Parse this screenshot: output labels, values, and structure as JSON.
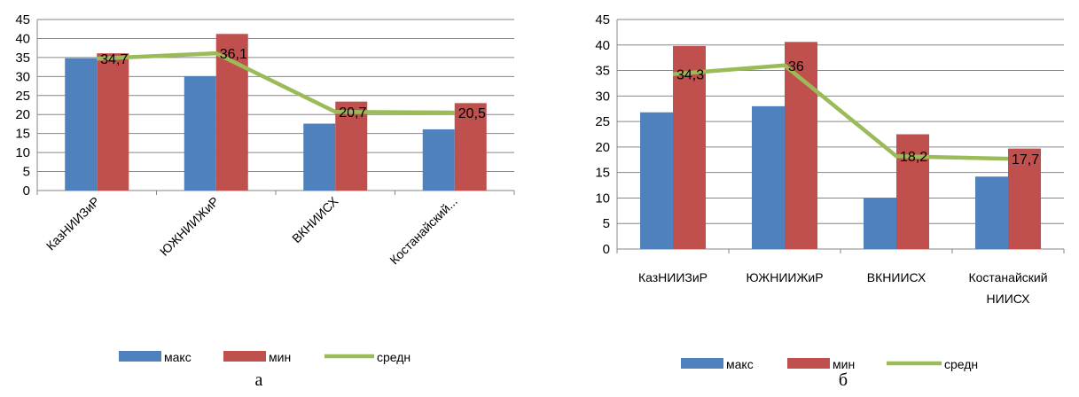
{
  "chart_data": [
    {
      "type": "bar",
      "caption": "а",
      "categories": [
        "КазНИИЗиР",
        "ЮЖНИИЖиР",
        "ВКНИИСХ",
        "Костанайский..."
      ],
      "series": [
        {
          "name": "макс",
          "type": "bar",
          "color": "#4F81BD",
          "values": [
            34.8,
            30.1,
            17.6,
            16.1
          ]
        },
        {
          "name": "мин",
          "type": "bar",
          "color": "#C0504D",
          "values": [
            36.1,
            41.2,
            23.4,
            23.0
          ]
        },
        {
          "name": "средн",
          "type": "line",
          "color": "#9BBB59",
          "values": [
            34.7,
            36.1,
            20.7,
            20.5
          ],
          "data_labels": [
            "34,7",
            "36,1",
            "20,7",
            "20,5"
          ]
        }
      ],
      "ylim": [
        0,
        45
      ],
      "yticks": [
        0,
        5,
        10,
        15,
        20,
        25,
        30,
        35,
        40,
        45
      ],
      "grid": true,
      "legend": "bottom",
      "xlabel_rotation": "diagonal"
    },
    {
      "type": "bar",
      "caption": "б",
      "categories": [
        "КазНИИЗиР",
        "ЮЖНИИЖиР",
        "ВКНИИСХ",
        "Костанайский НИИСХ"
      ],
      "category_lines": [
        [
          "КазНИИЗиР"
        ],
        [
          "ЮЖНИИЖиР"
        ],
        [
          "ВКНИИСХ"
        ],
        [
          "Костанайский",
          "НИИСХ"
        ]
      ],
      "series": [
        {
          "name": "макс",
          "type": "bar",
          "color": "#4F81BD",
          "values": [
            26.8,
            28.0,
            10.0,
            14.2
          ]
        },
        {
          "name": "мин",
          "type": "bar",
          "color": "#C0504D",
          "values": [
            39.8,
            40.6,
            22.5,
            19.7
          ]
        },
        {
          "name": "средн",
          "type": "line",
          "color": "#9BBB59",
          "values": [
            34.3,
            36.0,
            18.2,
            17.7
          ],
          "data_labels": [
            "34,3",
            "36",
            "18,2",
            "17,7"
          ]
        }
      ],
      "ylim": [
        0,
        45
      ],
      "yticks": [
        0,
        5,
        10,
        15,
        20,
        25,
        30,
        35,
        40,
        45
      ],
      "grid": true,
      "legend": "bottom",
      "xlabel_rotation": "horizontal"
    }
  ]
}
